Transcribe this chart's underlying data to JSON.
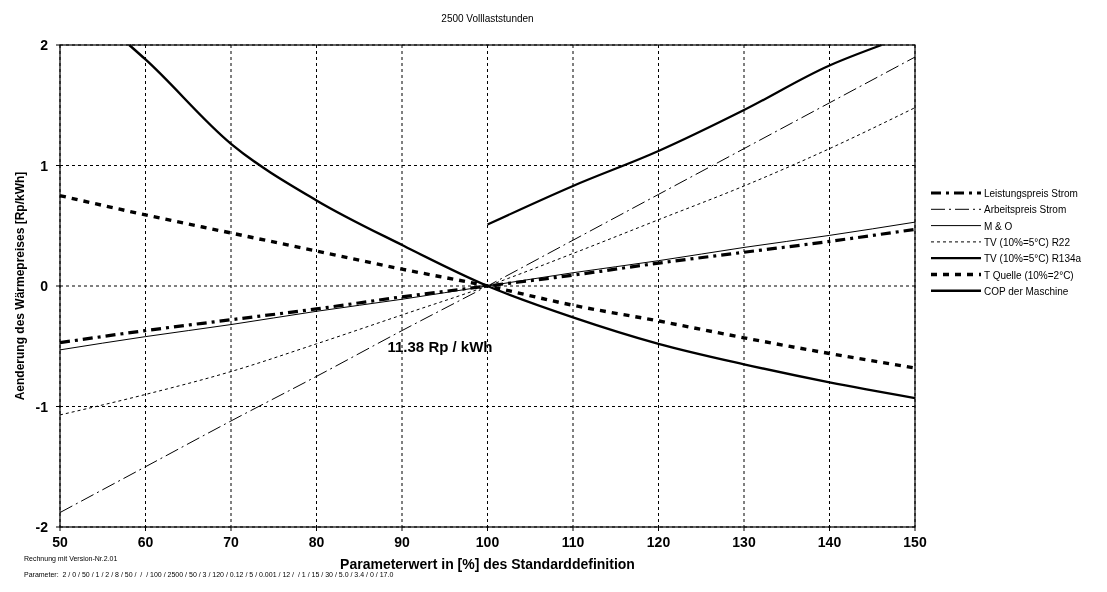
{
  "chart_data": {
    "type": "line",
    "title": "2500 Volllaststunden",
    "xlabel": "Parameterwert in [%] des Standarddefinition",
    "ylabel": "Aenderung des Wärmepreises [Rp/kWh]",
    "x": [
      50,
      60,
      70,
      80,
      90,
      100,
      110,
      120,
      130,
      140,
      150
    ],
    "series": [
      {
        "name": "Leistungspreis Strom",
        "color": "#000000",
        "line_style": "dashed",
        "values": [
          -0.47,
          -0.37,
          -0.28,
          -0.19,
          -0.09,
          0,
          0.09,
          0.19,
          0.28,
          0.37,
          0.47
        ]
      },
      {
        "name": "Arbeitspreis Strom",
        "color": "#000000",
        "line_style": "dashed",
        "values": [
          -1.88,
          -1.5,
          -1.12,
          -0.75,
          -0.37,
          0,
          0.38,
          0.76,
          1.14,
          1.52,
          1.9
        ]
      },
      {
        "name": "M & O",
        "color": "#000000",
        "line_style": "solid",
        "values": [
          -0.53,
          -0.42,
          -0.32,
          -0.21,
          -0.11,
          0,
          0.11,
          0.21,
          0.32,
          0.42,
          0.53
        ]
      },
      {
        "name": "TV (10%=5°C) R22",
        "color": "#000000",
        "line_style": "dotted",
        "values": [
          -1.07,
          -0.9,
          -0.71,
          -0.48,
          -0.24,
          0,
          0.27,
          0.55,
          0.83,
          1.14,
          1.48
        ]
      },
      {
        "name": "TV (10%=5°C) R134a",
        "color": "#000000",
        "line_style": "solid",
        "x": [
          100,
          110,
          120,
          130,
          140,
          146.1
        ],
        "values": [
          0.51,
          0.83,
          1.12,
          1.46,
          1.83,
          2.0
        ]
      },
      {
        "name": "T Quelle (10%=2°C)",
        "color": "#000000",
        "line_style": "dashed",
        "values": [
          0.75,
          0.59,
          0.44,
          0.29,
          0.14,
          0,
          -0.16,
          -0.29,
          -0.43,
          -0.56,
          -0.68
        ]
      },
      {
        "name": "COP der Maschine",
        "color": "#000000",
        "line_style": "solid",
        "x": [
          58.1,
          60,
          70,
          80,
          90,
          100,
          110,
          120,
          130,
          140,
          150
        ],
        "values": [
          2.0,
          1.88,
          1.18,
          0.71,
          0.34,
          0,
          -0.26,
          -0.48,
          -0.65,
          -0.8,
          -0.93
        ]
      }
    ],
    "xlim": [
      50,
      150
    ],
    "xticks": [
      50,
      60,
      70,
      80,
      90,
      100,
      110,
      120,
      130,
      140,
      150
    ],
    "ylim": [
      -2,
      2
    ],
    "yticks": [
      -2,
      -1,
      0,
      1,
      2
    ],
    "grid": true,
    "legend": "right",
    "annotations": [
      "11.38 Rp / kWh",
      "Rechnung mit Version-Nr.2.01",
      "Parameter:  2 / 0 / 50 / 1 / 2 / 8 / 50 /  /  / 100 / 2500 / 50 / 3 / 120 / 0.12 / 5 / 0.001 / 12 /  / 1 / 15 / 30 / 5.0 / 3.4 / 0 / 17.0"
    ]
  }
}
